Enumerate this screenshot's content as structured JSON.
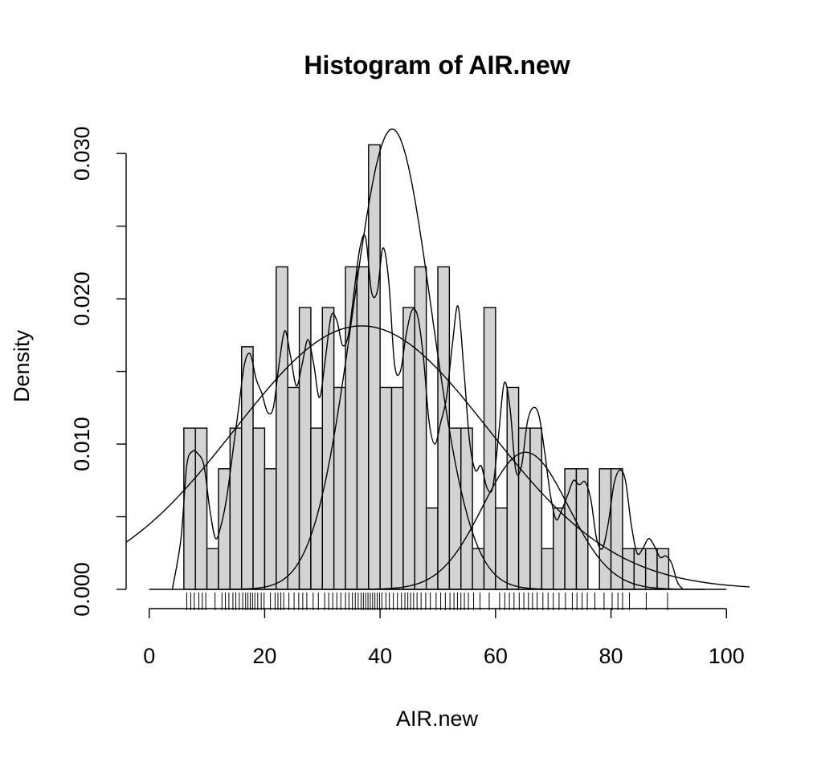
{
  "chart_data": {
    "type": "histogram",
    "title": "Histogram of AIR.new",
    "xlabel": "AIR.new",
    "ylabel": "Density",
    "xlim": [
      -4,
      104
    ],
    "ylim": [
      0,
      0.032
    ],
    "x_ticks": [
      0,
      20,
      40,
      60,
      80,
      100
    ],
    "x_tick_labels": [
      "0",
      "20",
      "40",
      "60",
      "80",
      "100"
    ],
    "y_ticks": [
      0,
      0.005,
      0.01,
      0.015,
      0.02,
      0.025,
      0.03
    ],
    "y_tick_labels": [
      "0.000",
      "",
      "0.010",
      "",
      "0.020",
      "",
      "0.030"
    ],
    "bin_width": 2,
    "bin_start": 6,
    "bar_fill": "#d3d3d3",
    "line_color": "#000000",
    "densities": [
      0.0111,
      0.0111,
      0.0028,
      0.0083,
      0.0111,
      0.0167,
      0.0111,
      0.0083,
      0.0222,
      0.0139,
      0.0194,
      0.0111,
      0.0194,
      0.0139,
      0.0222,
      0.0222,
      0.0306,
      0.0139,
      0.0139,
      0.0194,
      0.0222,
      0.0056,
      0.0222,
      0.0111,
      0.0111,
      0.0028,
      0.0194,
      0.0056,
      0.0139,
      0.0111,
      0.0111,
      0.0028,
      0.0056,
      0.0083,
      0.0083,
      0,
      0.0083,
      0.0083,
      0.0028,
      0.0028,
      0.0028,
      0.0028
    ],
    "normal_overall": {
      "mean": 36.8,
      "sd": 22.0
    },
    "mixture_components": [
      {
        "mean": 42.1,
        "sd": 6.8,
        "weight": 0.54
      },
      {
        "mean": 65.2,
        "sd": 7.4,
        "weight": 0.175
      }
    ],
    "kde": {
      "x": [
        4,
        5.5,
        6.5,
        7.5,
        8.5,
        9.5,
        10.5,
        11.5,
        12.5,
        13.5,
        14.5,
        15.5,
        16.5,
        17.5,
        18.5,
        19.5,
        20.5,
        21.5,
        22.5,
        23.5,
        24.5,
        25.5,
        26.5,
        27.5,
        28.5,
        29.5,
        30.5,
        31.5,
        32.5,
        33.5,
        34.5,
        35.5,
        36.5,
        37.5,
        38.5,
        39.5,
        40.5,
        41.5,
        42.5,
        43.5,
        44.5,
        45.5,
        46.5,
        47.5,
        48.5,
        49.5,
        50.5,
        51.5,
        52.5,
        53.5,
        54.5,
        55.5,
        56.5,
        57.5,
        58.5,
        59.5,
        60.5,
        61.5,
        62.5,
        63.5,
        64.5,
        65.5,
        66.5,
        67.5,
        68.5,
        69.5,
        70.5,
        71.5,
        72.5,
        73.5,
        74.5,
        75.5,
        76.5,
        77.5,
        78.5,
        79.5,
        80.5,
        81.5,
        82.5,
        83.5,
        84.5,
        85.5,
        86.5,
        87.5,
        88.5,
        89.5,
        90.5,
        91.5,
        92.5
      ],
      "y": [
        0,
        0.0035,
        0.0085,
        0.0095,
        0.0093,
        0.0085,
        0.0055,
        0.0035,
        0.0045,
        0.0065,
        0.0095,
        0.0125,
        0.0155,
        0.0162,
        0.0145,
        0.0135,
        0.0122,
        0.0125,
        0.0155,
        0.0178,
        0.016,
        0.014,
        0.0155,
        0.0172,
        0.0155,
        0.0132,
        0.0158,
        0.0188,
        0.0185,
        0.0168,
        0.0175,
        0.0205,
        0.0235,
        0.0242,
        0.0205,
        0.0205,
        0.0235,
        0.0212,
        0.0155,
        0.015,
        0.0175,
        0.0192,
        0.0188,
        0.016,
        0.0115,
        0.01,
        0.0115,
        0.0132,
        0.0168,
        0.0195,
        0.0152,
        0.0102,
        0.0082,
        0.0085,
        0.007,
        0.007,
        0.0105,
        0.0142,
        0.0125,
        0.0082,
        0.0085,
        0.0115,
        0.0125,
        0.012,
        0.0095,
        0.0065,
        0.0048,
        0.0055,
        0.0065,
        0.0075,
        0.0072,
        0.0074,
        0.0062,
        0.0035,
        0.0028,
        0.0045,
        0.0072,
        0.0082,
        0.0075,
        0.0045,
        0.0025,
        0.0028,
        0.0035,
        0.003,
        0.0022,
        0.0023,
        0.0018,
        0.0005,
        0
      ]
    },
    "rug": [
      6.5,
      7.2,
      7.8,
      8.6,
      9.2,
      9.8,
      11.4,
      12.6,
      13.2,
      13.8,
      14.5,
      15.0,
      15.6,
      16.2,
      16.7,
      17.1,
      17.5,
      17.9,
      18.3,
      18.8,
      19.4,
      19.9,
      21.0,
      21.8,
      22.3,
      22.8,
      23.3,
      24.2,
      25.1,
      25.9,
      26.6,
      27.3,
      28.4,
      29.3,
      30.4,
      31.1,
      31.8,
      32.5,
      33.2,
      34.0,
      34.6,
      35.2,
      35.7,
      36.2,
      36.7,
      37.1,
      37.5,
      37.9,
      38.3,
      38.7,
      39.1,
      39.5,
      39.9,
      40.3,
      41.0,
      41.6,
      42.3,
      43.0,
      43.7,
      44.3,
      44.8,
      45.3,
      45.8,
      46.4,
      47.1,
      47.9,
      48.7,
      49.7,
      50.5,
      51.3,
      52.1,
      52.8,
      53.4,
      54.0,
      54.6,
      55.3,
      56.2,
      57.3,
      58.9,
      60.7,
      61.6,
      62.4,
      63.2,
      64.1,
      64.9,
      65.7,
      66.4,
      67.2,
      68.2,
      69.1,
      70.0,
      71.0,
      72.1,
      73.3,
      74.1,
      75.0,
      75.9,
      77.2,
      78.8,
      80.2,
      81.2,
      82.0,
      83.2,
      86.1,
      89.8
    ]
  }
}
